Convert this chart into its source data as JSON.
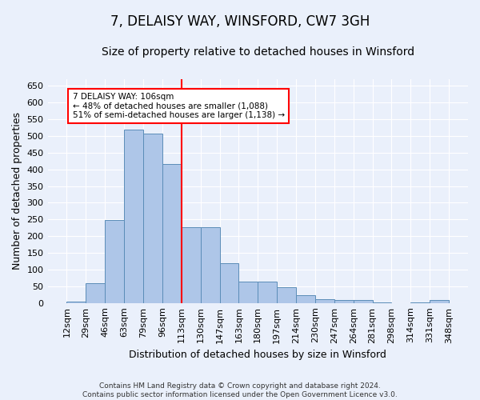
{
  "title": "7, DELAISY WAY, WINSFORD, CW7 3GH",
  "subtitle": "Size of property relative to detached houses in Winsford",
  "xlabel": "Distribution of detached houses by size in Winsford",
  "ylabel": "Number of detached properties",
  "footer_line1": "Contains HM Land Registry data © Crown copyright and database right 2024.",
  "footer_line2": "Contains public sector information licensed under the Open Government Licence v3.0.",
  "categories": [
    "12sqm",
    "29sqm",
    "46sqm",
    "63sqm",
    "79sqm",
    "96sqm",
    "113sqm",
    "130sqm",
    "147sqm",
    "163sqm",
    "180sqm",
    "197sqm",
    "214sqm",
    "230sqm",
    "247sqm",
    "264sqm",
    "281sqm",
    "298sqm",
    "314sqm",
    "331sqm",
    "348sqm"
  ],
  "values": [
    5,
    60,
    248,
    520,
    508,
    415,
    228,
    228,
    118,
    63,
    63,
    46,
    22,
    12,
    8,
    8,
    2,
    0,
    2,
    8
  ],
  "bar_color": "#aec6e8",
  "bar_edge_color": "#5b8db8",
  "reference_line_color": "red",
  "annotation_text": "7 DELAISY WAY: 106sqm\n← 48% of detached houses are smaller (1,088)\n51% of semi-detached houses are larger (1,138) →",
  "annotation_box_color": "white",
  "annotation_box_edge_color": "red",
  "ylim": [
    0,
    670
  ],
  "yticks": [
    0,
    50,
    100,
    150,
    200,
    250,
    300,
    350,
    400,
    450,
    500,
    550,
    600,
    650
  ],
  "background_color": "#eaf0fb",
  "plot_background_color": "#eaf0fb",
  "title_fontsize": 12,
  "subtitle_fontsize": 10,
  "axis_label_fontsize": 9,
  "tick_fontsize": 8,
  "footer_fontsize": 6.5
}
